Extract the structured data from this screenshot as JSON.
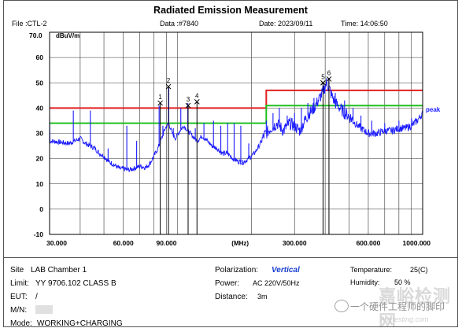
{
  "title": "Radiated Emission Measurement",
  "header": {
    "file": "File :CTL-2",
    "data_no": "Data :#7840",
    "date": "Date: 2023/09/11",
    "time": "Time: 14:06:50"
  },
  "chart_data": {
    "type": "line",
    "ylabel": "dBuV/m",
    "xlabel": "(MHz)",
    "xscale": "log",
    "xlim": [
      30,
      1000
    ],
    "ylim": [
      -10,
      70
    ],
    "y_ticks": [
      -10,
      0,
      10,
      20,
      30,
      40,
      50,
      60
    ],
    "y_top_label": "70.0",
    "x_ticks": [
      {
        "value": 30,
        "label": "30.000"
      },
      {
        "value": 60,
        "label": "60.000"
      },
      {
        "value": 90,
        "label": "90.000"
      },
      {
        "value": 300,
        "label": "300.000"
      },
      {
        "value": 600,
        "label": "600.000"
      },
      {
        "value": 1000,
        "label": "1000.000"
      }
    ],
    "grid": true,
    "limit_line": {
      "color": "#e02020",
      "points": [
        [
          30,
          40
        ],
        [
          230,
          40
        ],
        [
          230,
          47
        ],
        [
          1000,
          47
        ]
      ]
    },
    "margin_line": {
      "color": "#20c020",
      "points": [
        [
          30,
          34
        ],
        [
          230,
          34
        ],
        [
          230,
          41
        ],
        [
          1000,
          41
        ]
      ]
    },
    "trace": {
      "name": "peak",
      "color": "#1a1aff",
      "points": [
        [
          30,
          27
        ],
        [
          33,
          26.5
        ],
        [
          36,
          26
        ],
        [
          38,
          27
        ],
        [
          40,
          28
        ],
        [
          42,
          26
        ],
        [
          44,
          25
        ],
        [
          46,
          24
        ],
        [
          48,
          22
        ],
        [
          50,
          21
        ],
        [
          52,
          19
        ],
        [
          54,
          18
        ],
        [
          56,
          17
        ],
        [
          58,
          16
        ],
        [
          60,
          16
        ],
        [
          63,
          15.5
        ],
        [
          66,
          16
        ],
        [
          70,
          17
        ],
        [
          74,
          16.5
        ],
        [
          77,
          18
        ],
        [
          80,
          21
        ],
        [
          83,
          24
        ],
        [
          86,
          28
        ],
        [
          89,
          32
        ],
        [
          92,
          34
        ],
        [
          95,
          30
        ],
        [
          98,
          28
        ],
        [
          102,
          31
        ],
        [
          106,
          33
        ],
        [
          110,
          31
        ],
        [
          115,
          29
        ],
        [
          120,
          27
        ],
        [
          126,
          29
        ],
        [
          132,
          27
        ],
        [
          138,
          25
        ],
        [
          145,
          24
        ],
        [
          152,
          22
        ],
        [
          160,
          22
        ],
        [
          168,
          20
        ],
        [
          176,
          19
        ],
        [
          185,
          18.5
        ],
        [
          195,
          20
        ],
        [
          205,
          22
        ],
        [
          215,
          25
        ],
        [
          225,
          29
        ],
        [
          240,
          32
        ],
        [
          255,
          34
        ],
        [
          270,
          31
        ],
        [
          285,
          34
        ],
        [
          300,
          33
        ],
        [
          315,
          31
        ],
        [
          330,
          35
        ],
        [
          345,
          38
        ],
        [
          360,
          40
        ],
        [
          375,
          43
        ],
        [
          385,
          45
        ],
        [
          395,
          47
        ],
        [
          405,
          50
        ],
        [
          415,
          48
        ],
        [
          425,
          45
        ],
        [
          440,
          42
        ],
        [
          460,
          40
        ],
        [
          480,
          38
        ],
        [
          500,
          37
        ],
        [
          530,
          34
        ],
        [
          560,
          32
        ],
        [
          600,
          30
        ],
        [
          650,
          30
        ],
        [
          700,
          31
        ],
        [
          750,
          31
        ],
        [
          800,
          32
        ],
        [
          850,
          32
        ],
        [
          900,
          33
        ],
        [
          950,
          35
        ],
        [
          1000,
          38
        ]
      ],
      "spikes": [
        [
          37.5,
          39
        ],
        [
          44,
          39
        ],
        [
          52,
          24
        ],
        [
          62,
          33
        ],
        [
          68,
          27
        ],
        [
          84,
          41
        ],
        [
          87,
          33
        ],
        [
          92,
          48
        ],
        [
          96,
          32
        ],
        [
          103,
          40
        ],
        [
          110,
          42
        ],
        [
          118,
          32
        ],
        [
          128,
          34
        ],
        [
          140,
          35
        ],
        [
          150,
          33
        ],
        [
          160,
          34
        ],
        [
          170,
          34
        ],
        [
          181,
          33
        ],
        [
          195,
          26
        ],
        [
          230,
          35
        ],
        [
          245,
          38
        ],
        [
          260,
          40
        ],
        [
          280,
          37
        ],
        [
          300,
          38
        ],
        [
          320,
          40
        ],
        [
          340,
          42
        ],
        [
          360,
          44
        ],
        [
          392,
          50
        ],
        [
          414,
          52
        ],
        [
          440,
          46
        ],
        [
          480,
          43
        ],
        [
          520,
          40
        ],
        [
          560,
          37
        ],
        [
          620,
          35
        ],
        [
          700,
          34
        ],
        [
          800,
          35
        ],
        [
          900,
          36
        ]
      ]
    },
    "markers": [
      {
        "label": "1",
        "x": 84.9,
        "y": 42
      },
      {
        "label": "2",
        "x": 91.7,
        "y": 48.5
      },
      {
        "label": "3",
        "x": 110.3,
        "y": 41
      },
      {
        "label": "4",
        "x": 119.9,
        "y": 42.5
      },
      {
        "label": "5",
        "x": 392.1,
        "y": 50
      },
      {
        "label": "6",
        "x": 414.5,
        "y": 51.5
      }
    ],
    "annotations": [
      {
        "text": "peak"
      }
    ]
  },
  "footer": {
    "site_label": "Site",
    "site_value": "LAB Chamber 1",
    "limit_label": "Limit:",
    "limit_value": "YY 9706.102 CLASS B",
    "eut_label": "EUT:",
    "eut_value": "/",
    "mn_label": "M/N:",
    "mode_label": "Mode:",
    "mode_value": "WORKING+CHARGING",
    "polarization_label": "Polarization:",
    "polarization_value": "Vertical",
    "power_label": "Power:",
    "power_value": "AC 220V/50Hz",
    "distance_label": "Distance:",
    "distance_value": "3m",
    "temperature_label": "Temperature:",
    "temperature_value": "25(C)",
    "humidity_label": "Humidity:",
    "humidity_value": "50 %"
  },
  "watermark": {
    "top": "嘉峪检测网",
    "middle": "一个硬件工程师的脚印",
    "bottom": "Anytesting.com"
  }
}
